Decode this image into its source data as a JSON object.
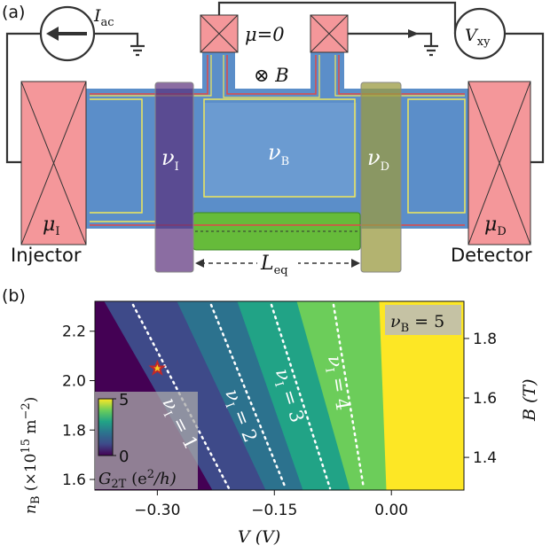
{
  "panel_a": {
    "label": "(a)",
    "current_source": {
      "main": "I",
      "sub": "ac"
    },
    "contact_potential": "μ=0",
    "field": "⊗ B",
    "voltmeter": {
      "main": "V",
      "sub": "xy"
    },
    "filling_injector": {
      "main": "ν",
      "sub": "I"
    },
    "filling_bulk": {
      "main": "ν",
      "sub": "B"
    },
    "filling_detector": {
      "main": "ν",
      "sub": "D"
    },
    "mu_injector": {
      "main": "μ",
      "sub": "I"
    },
    "mu_detector": {
      "main": "μ",
      "sub": "D"
    },
    "injector": "Injector",
    "detector": "Detector",
    "length": {
      "main": "L",
      "sub": "eq"
    }
  },
  "chart_data": {
    "type": "heatmap",
    "panel_label": "(b)",
    "xlabel": "V  (V)",
    "ylabel": {
      "main": "n",
      "sub": "B",
      "rest": " (×10",
      "sup": "15",
      "rest2": " m",
      "sup2": "−2",
      "rest3": ")"
    },
    "y2label": "B (T)",
    "xlim": [
      -0.38,
      0.093
    ],
    "ylim": [
      1.557,
      2.321
    ],
    "y2lim": [
      1.29,
      1.925
    ],
    "xticks": [
      {
        "value": -0.3,
        "label": "−0.30"
      },
      {
        "value": -0.15,
        "label": "−0.15"
      },
      {
        "value": 0,
        "label": "0.00"
      }
    ],
    "yticks": [
      2.2,
      {
        "value": 2,
        "label": "2.0"
      },
      1.8,
      1.6
    ],
    "y2ticks": [
      1.8,
      1.6,
      1.4
    ],
    "colormap": [
      "#440154",
      "#3e4a89",
      "#2c728e",
      "#21a386",
      "#6ccd5a",
      "#fde725"
    ],
    "clim": [
      0,
      5
    ],
    "cticks": [
      0,
      5
    ],
    "colorbar_label": {
      "main": "G",
      "sub": "2T",
      "rest": " (e",
      "sup": "2",
      "rest2": "/h)"
    },
    "bulk_filling": {
      "main": "ν",
      "sub": "B",
      "rest": " = 5"
    },
    "contours": [
      {
        "main": "ν",
        "sub": "I",
        "rest": " = 1"
      },
      {
        "main": "ν",
        "sub": "I",
        "rest": " = 2"
      },
      {
        "main": "ν",
        "sub": "I",
        "rest": " = 3"
      },
      {
        "main": "ν",
        "sub": "I",
        "rest": " = 4"
      }
    ],
    "marker": {
      "x": -0.3,
      "y": 2.05,
      "color": "#c0282a"
    }
  }
}
